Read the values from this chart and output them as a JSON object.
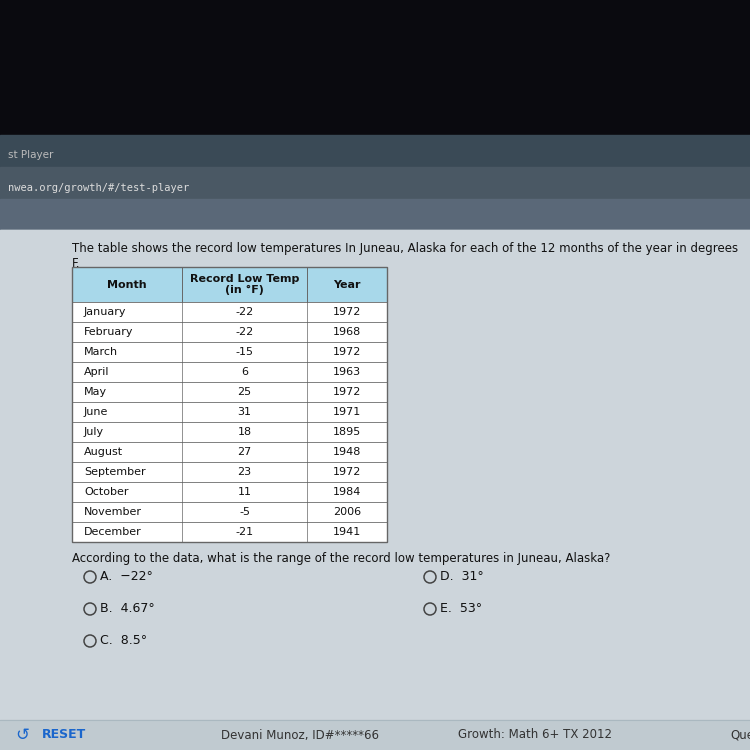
{
  "title_text": "The table shows the record low temperatures In Juneau, Alaska for each of the 12 months of the year in degrees F.",
  "col_headers": [
    "Month",
    "Record Low Temp\n(in °F)",
    "Year"
  ],
  "rows": [
    [
      "January",
      "-22",
      "1972"
    ],
    [
      "February",
      "-22",
      "1968"
    ],
    [
      "March",
      "-15",
      "1972"
    ],
    [
      "April",
      "6",
      "1963"
    ],
    [
      "May",
      "25",
      "1972"
    ],
    [
      "June",
      "31",
      "1971"
    ],
    [
      "July",
      "18",
      "1895"
    ],
    [
      "August",
      "27",
      "1948"
    ],
    [
      "September",
      "23",
      "1972"
    ],
    [
      "October",
      "11",
      "1984"
    ],
    [
      "November",
      "-5",
      "2006"
    ],
    [
      "December",
      "-21",
      "1941"
    ]
  ],
  "header_bg": "#a8d8ea",
  "border_color": "#666666",
  "question_text": "According to the data, what is the range of the record low temperatures in Juneau, Alaska?",
  "answer_options_left": [
    "A.  −22°",
    "B.  4.67°",
    "C.  8.5°"
  ],
  "answer_options_right": [
    "D.  31°",
    "E.  53°",
    ""
  ],
  "bg_dark": "#0d0d12",
  "bg_browser": "#3d4d5a",
  "bg_url": "#4a5a68",
  "bg_content": "#c8d2d8",
  "bg_white_panel": "#dde3e8",
  "footer_bg": "#c0cad0",
  "footer_reset": "RESET",
  "footer_center": "Devani Munoz, ID#*****66",
  "footer_right": "Growth: Math 6+ TX 2012",
  "footer_far_right": "Ques",
  "url_text": "nwea.org/growth/#/test-player",
  "tab_text": "st Player"
}
